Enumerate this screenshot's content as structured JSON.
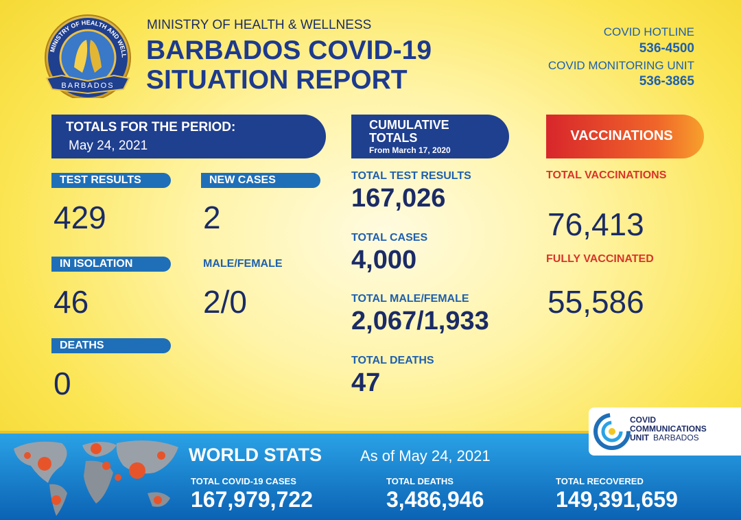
{
  "logo": {
    "ring_text": "MINISTRY OF HEALTH AND WELLNESS",
    "banner": "BARBADOS"
  },
  "header": {
    "ministry": "MINISTRY OF HEALTH & WELLNESS",
    "title_line1": "BARBADOS COVID-19",
    "title_line2": "SITUATION REPORT"
  },
  "contacts": [
    {
      "label": "COVID HOTLINE",
      "number": "536-4500"
    },
    {
      "label": "COVID MONITORING UNIT",
      "number": "536-3865"
    }
  ],
  "period": {
    "heading": "TOTALS FOR THE PERIOD:",
    "date": "May 24, 2021",
    "stats": [
      {
        "label": "TEST RESULTS",
        "value": "429"
      },
      {
        "label": "NEW CASES",
        "value": "2"
      },
      {
        "label": "IN ISOLATION",
        "value": "46"
      },
      {
        "label": "MALE/FEMALE",
        "value": "2/0"
      },
      {
        "label": "DEATHS",
        "value": "0"
      }
    ]
  },
  "cumulative": {
    "heading_line1": "CUMULATIVE",
    "heading_line2": "TOTALS",
    "since": "From March 17, 2020",
    "stats": [
      {
        "label": "TOTAL TEST RESULTS",
        "value": "167,026"
      },
      {
        "label": "TOTAL CASES",
        "value": "4,000"
      },
      {
        "label": "TOTAL MALE/FEMALE",
        "value": "2,067/1,933"
      },
      {
        "label": "TOTAL DEATHS",
        "value": "47"
      }
    ]
  },
  "vaccinations": {
    "heading": "VACCINATIONS",
    "stats": [
      {
        "label": "TOTAL VACCINATIONS",
        "value": "76,413"
      },
      {
        "label": "FULLY VACCINATED",
        "value": "55,586"
      }
    ]
  },
  "world": {
    "heading": "WORLD STATS",
    "as_of": "As of May 24, 2021",
    "stats": [
      {
        "label": "TOTAL COVID-19 CASES",
        "value": "167,979,722"
      },
      {
        "label": "TOTAL DEATHS",
        "value": "3,486,946"
      },
      {
        "label": "TOTAL RECOVERED",
        "value": "149,391,659"
      }
    ]
  },
  "ccu_logo": {
    "line1": "COVID",
    "line2": "COMMUNICATIONS",
    "line3": "UNIT",
    "line4": "BARBADOS"
  }
}
